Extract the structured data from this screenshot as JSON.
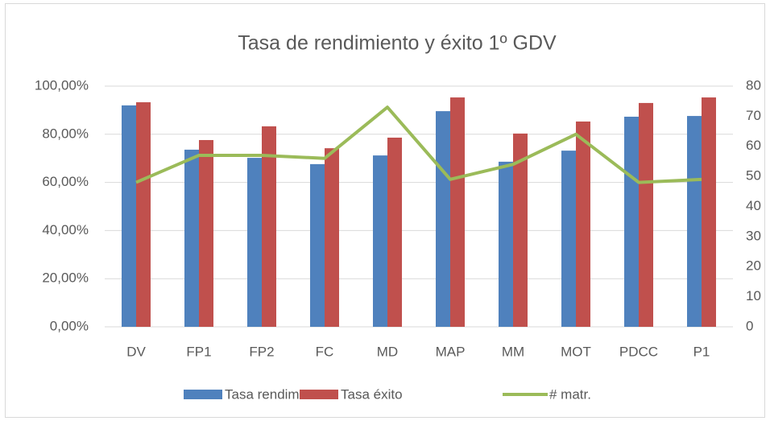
{
  "chart_data": {
    "type": "bar",
    "title": "Tasa de rendimiento y éxito 1º GDV",
    "categories": [
      "DV",
      "FP1",
      "FP2",
      "FC",
      "MD",
      "MAP",
      "MM",
      "MOT",
      "PDCC",
      "P1"
    ],
    "series": [
      {
        "name": "Tasa rendim.",
        "type": "bar",
        "color": "#4f81bd",
        "values": [
          92.0,
          73.6,
          70.2,
          67.6,
          71.2,
          89.6,
          68.6,
          73.2,
          87.3,
          87.6
        ]
      },
      {
        "name": "Tasa éxito",
        "type": "bar",
        "color": "#c0504d",
        "values": [
          93.3,
          77.6,
          83.3,
          74.2,
          78.6,
          95.3,
          80.3,
          85.3,
          93.0,
          95.3
        ]
      },
      {
        "name": "# matr.",
        "type": "line",
        "axis": "y2",
        "color": "#9bbb59",
        "values": [
          48,
          57,
          57,
          56,
          73,
          49,
          54,
          64,
          48,
          49
        ]
      }
    ],
    "ylim": [
      0,
      100
    ],
    "yticks": [
      {
        "value": 0,
        "label": "0,00%"
      },
      {
        "value": 20,
        "label": "20,00%"
      },
      {
        "value": 40,
        "label": "40,00%"
      },
      {
        "value": 60,
        "label": "60,00%"
      },
      {
        "value": 80,
        "label": "80,00%"
      },
      {
        "value": 100,
        "label": "100,00%"
      }
    ],
    "y2lim": [
      0,
      80
    ],
    "y2ticks": [
      0,
      10,
      20,
      30,
      40,
      50,
      60,
      70,
      80
    ],
    "grid": true,
    "legend": "bottom"
  }
}
